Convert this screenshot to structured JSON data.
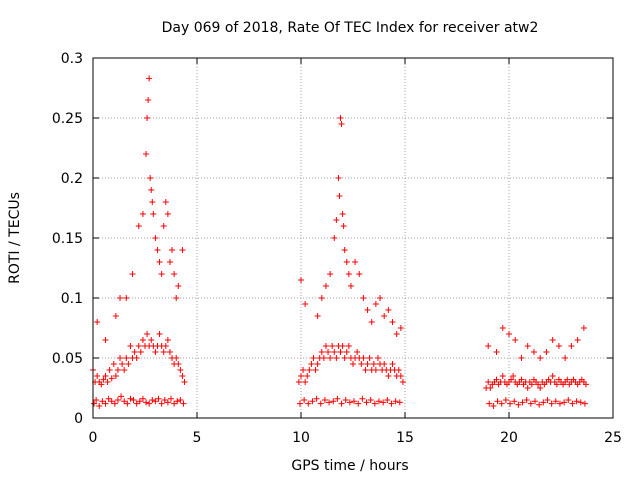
{
  "chart_data": {
    "type": "scatter",
    "title": "Day 069 of 2018, Rate Of TEC Index for receiver atw2",
    "xlabel": "GPS time / hours",
    "ylabel": "ROTI / TECUs",
    "xlim": [
      0,
      25
    ],
    "ylim": [
      0,
      0.3
    ],
    "x_ticks": [
      0,
      5,
      10,
      15,
      20,
      25
    ],
    "x_tick_labels": [
      "0",
      "5",
      "10",
      "15",
      "20",
      "25"
    ],
    "y_ticks": [
      0,
      0.05,
      0.1,
      0.15,
      0.2,
      0.25,
      0.3
    ],
    "y_tick_labels": [
      "0",
      "0.05",
      "0.1",
      "0.15",
      "0.2",
      "0.25",
      "0.3"
    ],
    "grid": true,
    "marker": "+",
    "color": "#ff0000",
    "series": [
      {
        "name": "ROTI",
        "x": [
          0.0,
          0.1,
          0.2,
          0.3,
          0.4,
          0.5,
          0.6,
          0.7,
          0.8,
          0.9,
          1.0,
          1.1,
          1.2,
          1.3,
          1.4,
          1.5,
          1.6,
          1.7,
          1.8,
          1.9,
          2.0,
          2.1,
          2.2,
          2.3,
          2.4,
          2.5,
          2.6,
          2.7,
          2.8,
          2.9,
          3.0,
          3.1,
          3.2,
          3.3,
          3.4,
          3.5,
          3.6,
          3.7,
          3.8,
          3.9,
          4.0,
          4.1,
          4.2,
          4.3,
          4.4,
          0.05,
          0.15,
          0.3,
          0.45,
          0.6,
          0.75,
          0.9,
          1.05,
          1.2,
          1.35,
          1.5,
          1.65,
          1.8,
          1.95,
          2.1,
          2.25,
          2.4,
          2.55,
          2.7,
          2.85,
          3.0,
          3.15,
          3.3,
          3.45,
          3.6,
          3.75,
          3.9,
          4.05,
          4.2,
          4.35,
          0.2,
          0.6,
          1.1,
          1.3,
          1.6,
          1.9,
          2.2,
          2.4,
          2.55,
          2.6,
          2.65,
          2.7,
          2.75,
          2.8,
          2.85,
          2.9,
          3.0,
          3.1,
          3.2,
          3.3,
          3.4,
          3.5,
          3.6,
          3.7,
          3.8,
          3.9,
          4.0,
          4.1,
          4.3,
          9.9,
          10.0,
          10.1,
          10.2,
          10.3,
          10.4,
          10.5,
          10.6,
          10.7,
          10.8,
          10.9,
          11.0,
          11.1,
          11.2,
          11.3,
          11.4,
          11.5,
          11.6,
          11.7,
          11.8,
          11.9,
          12.0,
          12.1,
          12.2,
          12.3,
          12.4,
          12.5,
          12.6,
          12.7,
          12.8,
          12.9,
          13.0,
          13.1,
          13.2,
          13.3,
          13.4,
          13.5,
          13.6,
          13.7,
          13.8,
          13.9,
          14.0,
          14.1,
          14.2,
          14.3,
          14.4,
          14.5,
          14.6,
          14.7,
          14.8,
          14.9,
          9.95,
          10.15,
          10.35,
          10.55,
          10.75,
          10.95,
          11.15,
          11.35,
          11.55,
          11.75,
          11.95,
          12.15,
          12.35,
          12.55,
          12.75,
          12.95,
          13.15,
          13.35,
          13.55,
          13.75,
          13.95,
          14.15,
          14.35,
          14.55,
          14.75,
          10.0,
          10.2,
          10.8,
          11.0,
          11.2,
          11.4,
          11.6,
          11.7,
          11.8,
          11.85,
          11.9,
          11.95,
          12.0,
          12.05,
          12.1,
          12.2,
          12.3,
          12.4,
          12.6,
          12.8,
          13.0,
          13.2,
          13.4,
          13.6,
          13.8,
          14.0,
          14.2,
          14.4,
          14.6,
          14.8,
          18.9,
          19.0,
          19.1,
          19.2,
          19.3,
          19.4,
          19.5,
          19.6,
          19.7,
          19.8,
          19.9,
          20.0,
          20.1,
          20.2,
          20.3,
          20.4,
          20.5,
          20.6,
          20.7,
          20.8,
          20.9,
          21.0,
          21.1,
          21.2,
          21.3,
          21.4,
          21.5,
          21.6,
          21.7,
          21.8,
          21.9,
          22.0,
          22.1,
          22.2,
          22.3,
          22.4,
          22.5,
          22.6,
          22.7,
          22.8,
          22.9,
          23.0,
          23.1,
          23.2,
          23.3,
          23.4,
          23.5,
          23.6,
          23.7,
          19.05,
          19.25,
          19.45,
          19.65,
          19.85,
          20.05,
          20.25,
          20.45,
          20.65,
          20.85,
          21.05,
          21.25,
          21.45,
          21.65,
          21.85,
          22.05,
          22.25,
          22.45,
          22.65,
          22.85,
          23.05,
          23.25,
          23.45,
          23.65,
          19.0,
          19.4,
          19.7,
          20.0,
          20.3,
          20.6,
          20.9,
          21.2,
          21.5,
          21.8,
          22.1,
          22.4,
          22.7,
          23.0,
          23.3,
          23.6
        ],
        "y": [
          0.04,
          0.03,
          0.035,
          0.03,
          0.028,
          0.032,
          0.035,
          0.03,
          0.04,
          0.033,
          0.045,
          0.035,
          0.04,
          0.05,
          0.045,
          0.04,
          0.05,
          0.045,
          0.06,
          0.05,
          0.055,
          0.05,
          0.06,
          0.055,
          0.065,
          0.06,
          0.07,
          0.06,
          0.065,
          0.06,
          0.055,
          0.06,
          0.07,
          0.06,
          0.055,
          0.06,
          0.065,
          0.055,
          0.05,
          0.045,
          0.05,
          0.045,
          0.04,
          0.035,
          0.03,
          0.012,
          0.015,
          0.01,
          0.014,
          0.012,
          0.016,
          0.014,
          0.012,
          0.015,
          0.018,
          0.014,
          0.012,
          0.016,
          0.015,
          0.012,
          0.014,
          0.016,
          0.013,
          0.012,
          0.015,
          0.014,
          0.016,
          0.012,
          0.015,
          0.013,
          0.016,
          0.012,
          0.014,
          0.015,
          0.012,
          0.08,
          0.065,
          0.085,
          0.1,
          0.1,
          0.12,
          0.16,
          0.17,
          0.22,
          0.25,
          0.265,
          0.283,
          0.2,
          0.19,
          0.18,
          0.17,
          0.15,
          0.14,
          0.13,
          0.12,
          0.16,
          0.18,
          0.17,
          0.13,
          0.14,
          0.12,
          0.1,
          0.11,
          0.14,
          0.03,
          0.035,
          0.04,
          0.03,
          0.035,
          0.04,
          0.045,
          0.05,
          0.04,
          0.045,
          0.05,
          0.055,
          0.05,
          0.06,
          0.055,
          0.05,
          0.06,
          0.055,
          0.05,
          0.06,
          0.055,
          0.06,
          0.05,
          0.055,
          0.06,
          0.05,
          0.045,
          0.05,
          0.055,
          0.05,
          0.045,
          0.05,
          0.04,
          0.045,
          0.05,
          0.04,
          0.045,
          0.04,
          0.05,
          0.045,
          0.04,
          0.045,
          0.04,
          0.035,
          0.04,
          0.045,
          0.04,
          0.035,
          0.04,
          0.035,
          0.03,
          0.012,
          0.015,
          0.012,
          0.014,
          0.016,
          0.012,
          0.015,
          0.013,
          0.014,
          0.016,
          0.012,
          0.015,
          0.013,
          0.014,
          0.012,
          0.016,
          0.013,
          0.015,
          0.012,
          0.014,
          0.013,
          0.015,
          0.012,
          0.014,
          0.013,
          0.115,
          0.095,
          0.085,
          0.1,
          0.11,
          0.12,
          0.15,
          0.165,
          0.2,
          0.185,
          0.25,
          0.245,
          0.17,
          0.16,
          0.14,
          0.13,
          0.12,
          0.11,
          0.13,
          0.12,
          0.1,
          0.09,
          0.08,
          0.095,
          0.1,
          0.085,
          0.09,
          0.08,
          0.07,
          0.075,
          0.025,
          0.03,
          0.025,
          0.028,
          0.03,
          0.032,
          0.028,
          0.03,
          0.035,
          0.03,
          0.028,
          0.03,
          0.032,
          0.035,
          0.03,
          0.028,
          0.03,
          0.032,
          0.028,
          0.03,
          0.025,
          0.03,
          0.028,
          0.032,
          0.03,
          0.028,
          0.025,
          0.03,
          0.028,
          0.03,
          0.032,
          0.03,
          0.035,
          0.03,
          0.028,
          0.032,
          0.03,
          0.028,
          0.03,
          0.032,
          0.028,
          0.03,
          0.032,
          0.03,
          0.028,
          0.03,
          0.032,
          0.03,
          0.028,
          0.012,
          0.01,
          0.014,
          0.012,
          0.015,
          0.012,
          0.014,
          0.011,
          0.013,
          0.015,
          0.012,
          0.014,
          0.011,
          0.013,
          0.015,
          0.012,
          0.014,
          0.012,
          0.013,
          0.015,
          0.012,
          0.014,
          0.013,
          0.012,
          0.06,
          0.055,
          0.075,
          0.07,
          0.065,
          0.05,
          0.06,
          0.055,
          0.05,
          0.055,
          0.065,
          0.06,
          0.05,
          0.06,
          0.065,
          0.075
        ]
      }
    ]
  }
}
